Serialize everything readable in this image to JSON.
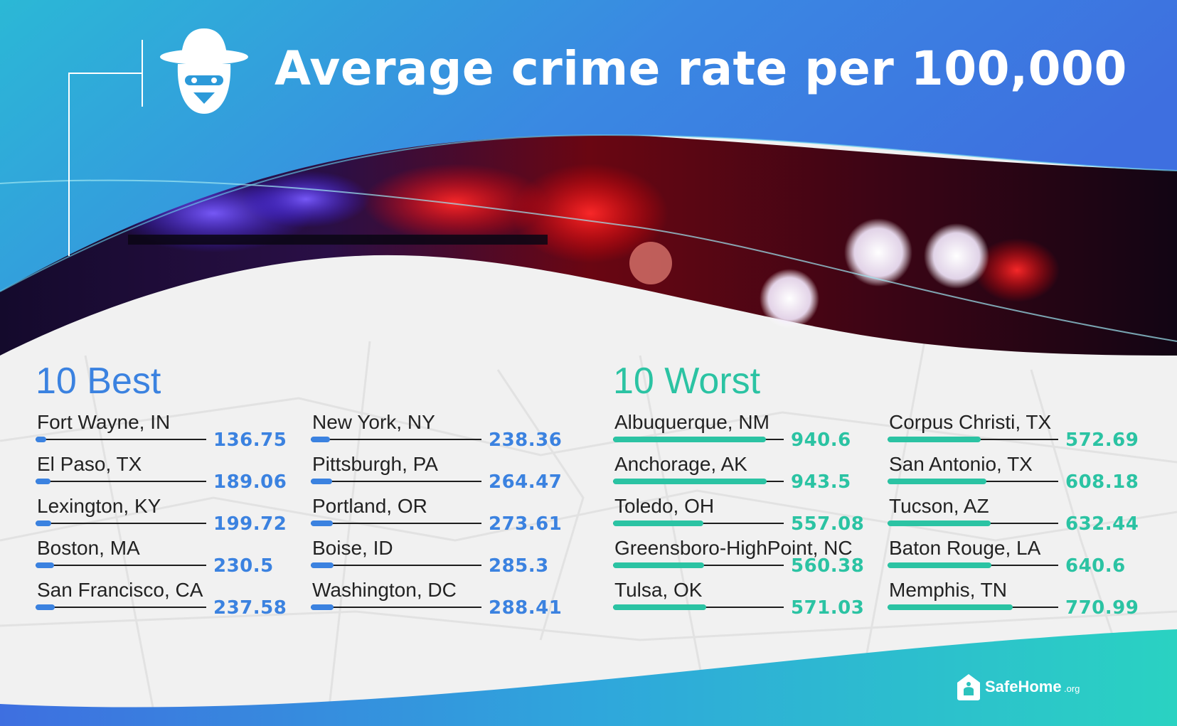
{
  "title": "Average crime rate per 100,000",
  "colors": {
    "best": "#3b82e0",
    "worst": "#2bc3a3",
    "header_top": "#2bb8d6",
    "header_right": "#3e6fe0",
    "map_background": "#f1f1f1"
  },
  "icons": {
    "header_icon": "detective-hat-icon",
    "logo_icon": "house-icon"
  },
  "brand": {
    "name": "SafeHome",
    "suffix": ".org"
  },
  "chart_data": [
    {
      "type": "bar",
      "title": "10 Best",
      "categories": [
        "Fort Wayne, IN",
        "El Paso, TX",
        "Lexington, KY",
        "Boston, MA",
        "San Francisco, CA",
        "New York, NY",
        "Pittsburgh, PA",
        "Portland, OR",
        "Boise, ID",
        "Washington, DC"
      ],
      "values": [
        136.75,
        189.06,
        199.72,
        230.5,
        237.58,
        238.36,
        264.47,
        273.61,
        285.3,
        288.41
      ],
      "value_labels": [
        "136.75",
        "189.06",
        "199.72",
        "230.5",
        "237.58",
        "238.36",
        "264.47",
        "273.61",
        "285.3",
        "288.41"
      ],
      "orientation": "horizontal",
      "layout_columns": 2
    },
    {
      "type": "bar",
      "title": "10 Worst",
      "categories": [
        "Albuquerque, NM",
        "Anchorage, AK",
        "Toledo, OH",
        "Greensboro-HighPoint, NC",
        "Tulsa, OK",
        "Corpus Christi, TX",
        "San Antonio, TX",
        "Tucson, AZ",
        "Baton Rouge, LA",
        "Memphis, TN"
      ],
      "values": [
        940.6,
        943.5,
        557.08,
        560.38,
        571.03,
        572.69,
        608.18,
        632.44,
        640.6,
        770.99
      ],
      "value_labels": [
        "940.6",
        "943.5",
        "557.08",
        "560.38",
        "571.03",
        "572.69",
        "608.18",
        "632.44",
        "640.6",
        "770.99"
      ],
      "orientation": "horizontal",
      "layout_columns": 2
    }
  ]
}
